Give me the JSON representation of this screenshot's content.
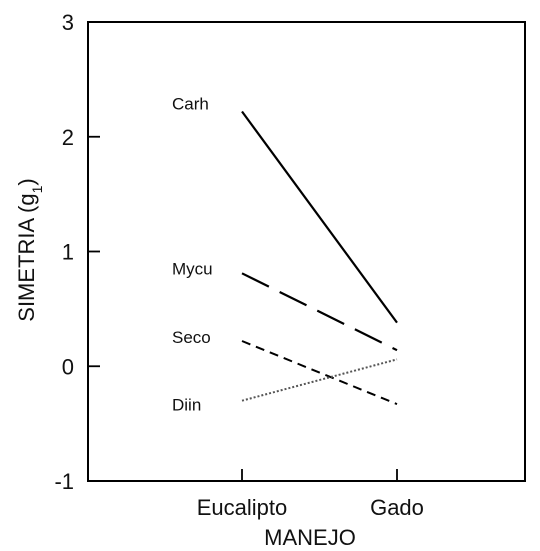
{
  "chart_data": {
    "type": "line",
    "title": "",
    "xlabel": "MANEJO",
    "ylabel": "SIMETRIA (g1)",
    "ylabel_main": "SIMETRIA (g",
    "ylabel_sub": "1",
    "ylabel_close": ")",
    "categories": [
      "Eucalipto",
      "Gado"
    ],
    "ylim": [
      -1,
      3
    ],
    "yticks": [
      -1,
      0,
      1,
      2,
      3
    ],
    "ytick_labels": [
      "-1",
      "0",
      "1",
      "2",
      "3"
    ],
    "grid": false,
    "legend": "none",
    "series": [
      {
        "name": "Carh",
        "values": [
          2.22,
          0.38
        ],
        "dash": "solid",
        "width": 2.2
      },
      {
        "name": "Mycu",
        "values": [
          0.81,
          0.14
        ],
        "dash": "long-dash",
        "width": 2.2
      },
      {
        "name": "Seco",
        "values": [
          0.22,
          -0.33
        ],
        "dash": "short-dash",
        "width": 2.0
      },
      {
        "name": "Diin",
        "values": [
          -0.3,
          0.06
        ],
        "dash": "dotted",
        "width": 2.0
      }
    ]
  }
}
